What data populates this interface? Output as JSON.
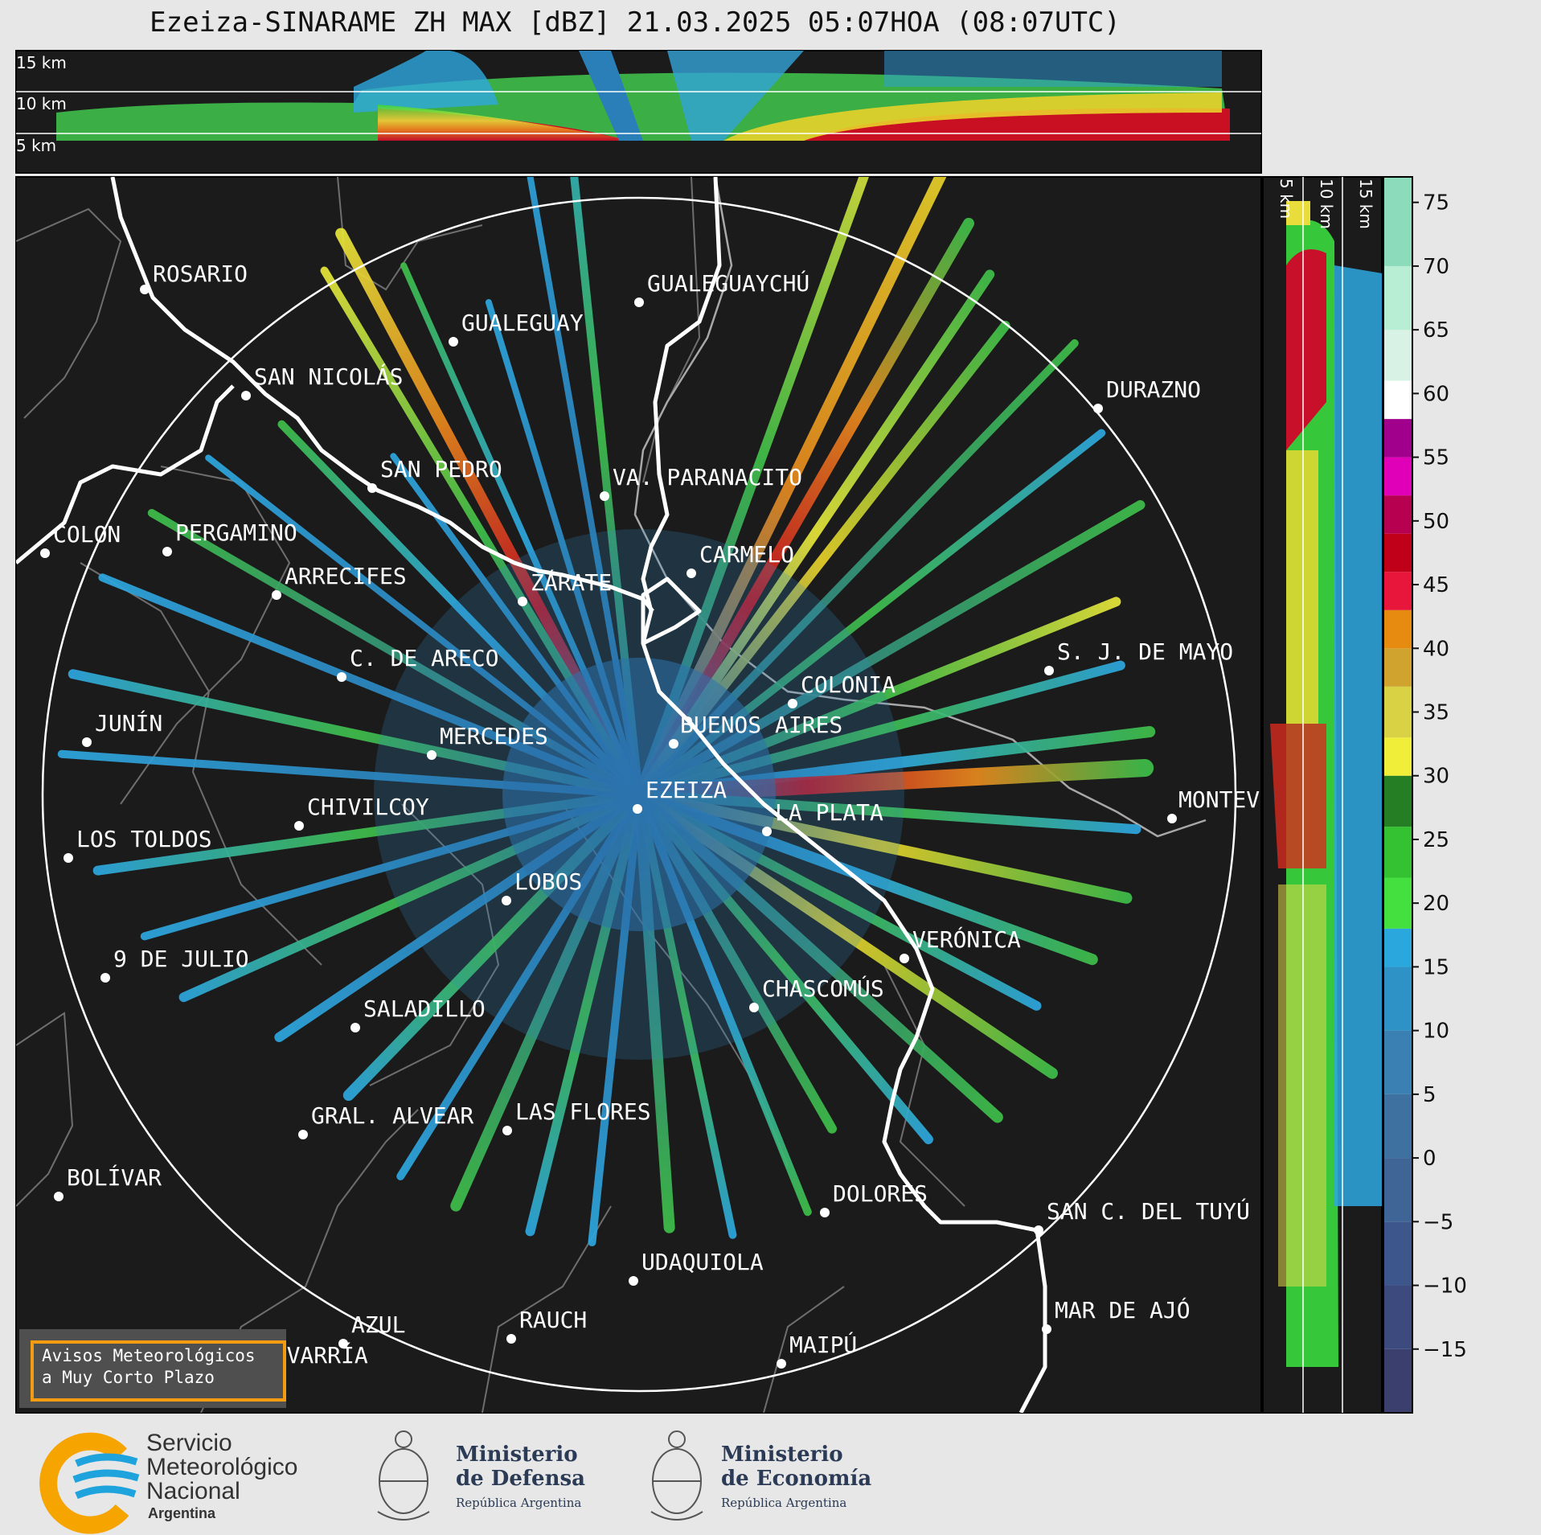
{
  "title": "Ezeiza-SINARAME ZH MAX [dBZ] 21.03.2025 05:07HOA (08:07UTC)",
  "top_panel": {
    "labels": [
      "15 km",
      "10 km",
      "5 km"
    ]
  },
  "side_panel": {
    "labels": [
      "5 km",
      "10 km",
      "15 km"
    ]
  },
  "colorbar": {
    "ticks": [
      "75",
      "70",
      "65",
      "60",
      "55",
      "50",
      "45",
      "40",
      "35",
      "30",
      "25",
      "20",
      "15",
      "10",
      "5",
      "0",
      "−5",
      "−10",
      "−15"
    ],
    "values": [
      75,
      70,
      65,
      60,
      55,
      50,
      45,
      40,
      35,
      30,
      25,
      20,
      15,
      10,
      5,
      0,
      -5,
      -10,
      -15
    ],
    "range": [
      -20,
      77
    ]
  },
  "cities": [
    {
      "name": "ROSARIO"
    },
    {
      "name": "GUALEGUAYCHÚ"
    },
    {
      "name": "GUALEGUAY"
    },
    {
      "name": "SAN NICOLÁS"
    },
    {
      "name": "DURAZNO"
    },
    {
      "name": "SAN PEDRO"
    },
    {
      "name": "VA. PARANACITO"
    },
    {
      "name": "COLON"
    },
    {
      "name": "PERGAMINO"
    },
    {
      "name": "CARMELO"
    },
    {
      "name": "ARRECIFES"
    },
    {
      "name": "ZÁRATE"
    },
    {
      "name": "S. J. DE MAYO"
    },
    {
      "name": "C. DE ARECO"
    },
    {
      "name": "COLONIA"
    },
    {
      "name": "JUNÍN"
    },
    {
      "name": "MERCEDES"
    },
    {
      "name": "BUENOS AIRES"
    },
    {
      "name": "EZEIZA"
    },
    {
      "name": "MONTEVIDEO"
    },
    {
      "name": "CHIVILCOY"
    },
    {
      "name": "LA PLATA"
    },
    {
      "name": "LOS TOLDOS"
    },
    {
      "name": "LOBOS"
    },
    {
      "name": "VERÓNICA"
    },
    {
      "name": "9 DE JULIO"
    },
    {
      "name": "CHASCOMÚS"
    },
    {
      "name": "SALADILLO"
    },
    {
      "name": "GRAL. ALVEAR"
    },
    {
      "name": "LAS FLORES"
    },
    {
      "name": "BOLÍVAR"
    },
    {
      "name": "DOLORES"
    },
    {
      "name": "SAN C. DEL TUYÚ"
    },
    {
      "name": "UDAQUIOLA"
    },
    {
      "name": "MAR DE AJÓ"
    },
    {
      "name": "AZUL"
    },
    {
      "name": "RAUCH"
    },
    {
      "name": "OLAVARRÍA"
    },
    {
      "name": "MAIPÚ"
    }
  ],
  "alert": {
    "line1": "Avisos Meteorológicos",
    "line2": "a Muy Corto Plazo"
  },
  "logos": {
    "smn": {
      "line1": "Servicio",
      "line2": "Meteorológico",
      "line3": "Nacional",
      "line4": "Argentina"
    },
    "defensa": {
      "line1": "Ministerio",
      "line2": "de Defensa",
      "line3": "República Argentina"
    },
    "economia": {
      "line1": "Ministerio",
      "line2": "de Economía",
      "line3": "República Argentina"
    }
  },
  "colors": {
    "background": "#1b1b1b",
    "ring": "#ffffff",
    "coast": "#ffffff",
    "borders": "#777777",
    "alert_border": "#f39c12",
    "smn_orange": "#f6a400",
    "smn_blue": "#1fa3dc"
  }
}
